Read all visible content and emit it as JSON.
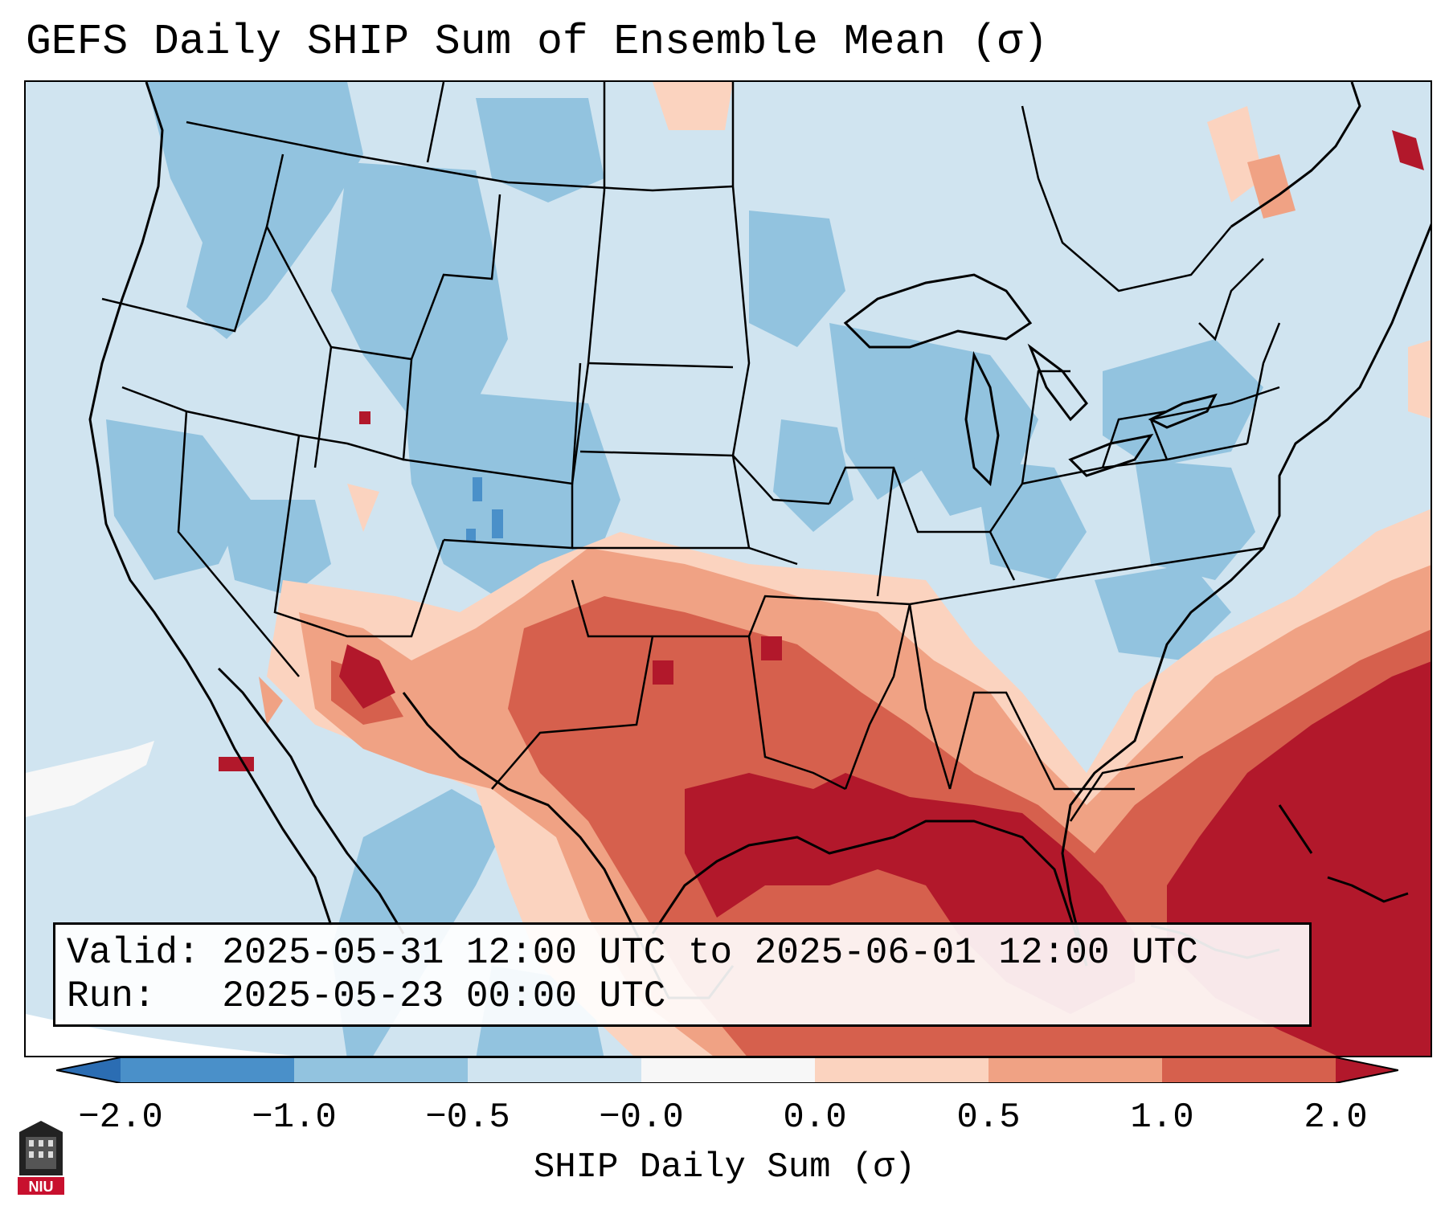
{
  "title": "GEFS Daily SHIP Sum of Ensemble Mean (σ)",
  "info": {
    "valid_label": "Valid:",
    "valid_value": "2025-05-31 12:00 UTC to 2025-06-01 12:00 UTC",
    "run_label": "Run:",
    "run_value": "2025-05-23 00:00 UTC"
  },
  "colorbar": {
    "label": "SHIP Daily Sum (σ)",
    "ticks": [
      "−2.0",
      "−1.0",
      "−0.5",
      "−0.0",
      "0.0",
      "0.5",
      "1.0",
      "2.0"
    ],
    "colors": {
      "below_min": "#2b6db3",
      "neg_2_to_1": "#4a90c9",
      "neg_1_to_05": "#92c3df",
      "neg_05_to_0": "#d0e4f0",
      "zero_band": "#f7f7f7",
      "pos_0_to_05": "#fbd3bf",
      "pos_05_to_1": "#f0a284",
      "pos_1_to_2": "#d6604d",
      "above_max": "#b2182b"
    }
  },
  "logo": {
    "text": "NIU",
    "icon": "niu-logo-icon"
  }
}
